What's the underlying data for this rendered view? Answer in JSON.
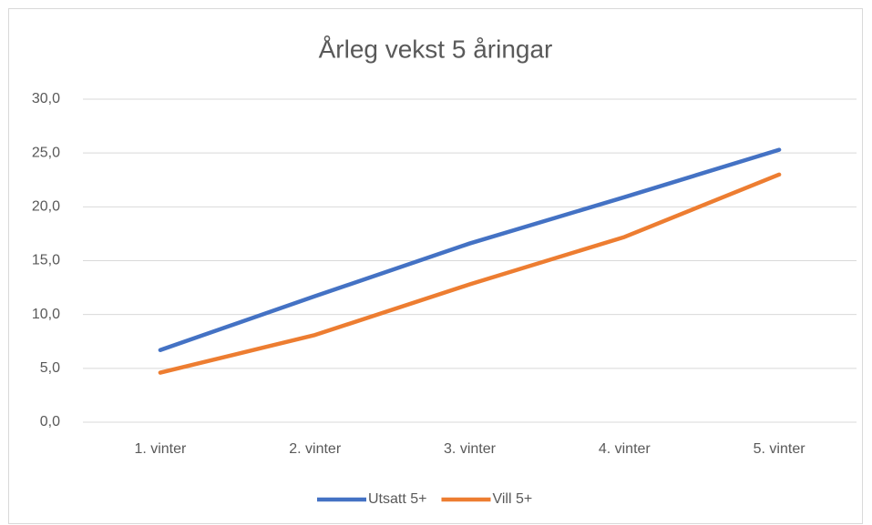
{
  "chart_data": {
    "type": "line",
    "title": "Årleg vekst 5 åringar",
    "categories": [
      "1. vinter",
      "2. vinter",
      "3. vinter",
      "4. vinter",
      "5. vinter"
    ],
    "series": [
      {
        "name": "Utsatt 5+",
        "color": "#4472c4",
        "values": [
          6.7,
          11.7,
          16.6,
          20.9,
          25.3
        ]
      },
      {
        "name": "Vill 5+",
        "color": "#ed7d31",
        "values": [
          4.6,
          8.1,
          12.8,
          17.2,
          23.0
        ]
      }
    ],
    "ylim": [
      0,
      30
    ],
    "yticks": [
      {
        "value": 0,
        "label": "0,0"
      },
      {
        "value": 5,
        "label": "5,0"
      },
      {
        "value": 10,
        "label": "10,0"
      },
      {
        "value": 15,
        "label": "15,0"
      },
      {
        "value": 20,
        "label": "20,0"
      },
      {
        "value": 25,
        "label": "25,0"
      },
      {
        "value": 30,
        "label": "30,0"
      }
    ],
    "grid": true,
    "legend": "bottom"
  }
}
